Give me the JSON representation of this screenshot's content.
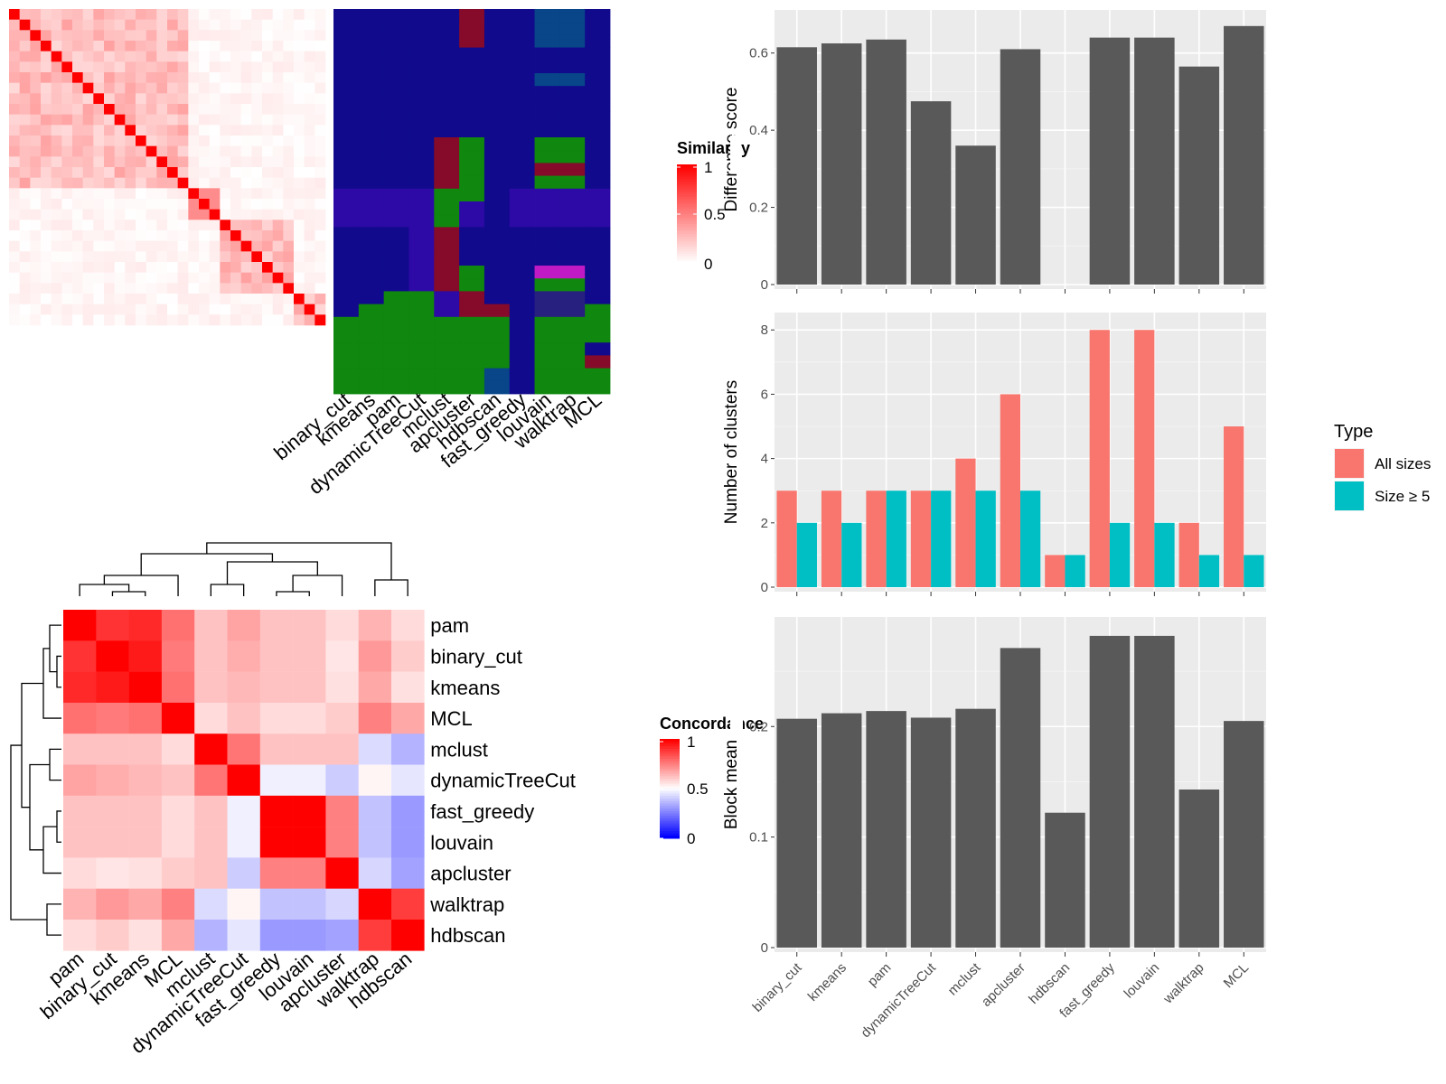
{
  "methods": [
    "binary_cut",
    "kmeans",
    "pam",
    "dynamicTreeCut",
    "mclust",
    "apcluster",
    "hdbscan",
    "fast_greedy",
    "louvain",
    "walktrap",
    "MCL"
  ],
  "similarity_legend": {
    "title": "Similarity",
    "ticks": [
      "1",
      "0.5",
      "0"
    ]
  },
  "concordance_legend": {
    "title": "Concordance",
    "ticks": [
      "1",
      "0.5",
      "0"
    ]
  },
  "type_legend": {
    "title": "Type",
    "items": [
      "All sizes",
      "Size ≥ 5"
    ]
  },
  "colors": {
    "all_sizes": "#F8766D",
    "size_ge5": "#00BFC4",
    "bar": "#595959",
    "panel_bg": "#EBEBEB",
    "red": "#FF0000",
    "blue": "#0000FF"
  },
  "chart_data": [
    {
      "type": "bar",
      "categories": [
        "binary_cut",
        "kmeans",
        "pam",
        "dynamicTreeCut",
        "mclust",
        "apcluster",
        "hdbscan",
        "fast_greedy",
        "louvain",
        "walktrap",
        "MCL"
      ],
      "values": [
        0.615,
        0.625,
        0.635,
        0.475,
        0.36,
        0.61,
        null,
        0.64,
        0.64,
        0.565,
        0.67
      ],
      "ylabel": "Difference score",
      "yticks": [
        0.0,
        0.2,
        0.4,
        0.6
      ],
      "ylim": [
        0,
        0.7
      ]
    },
    {
      "type": "bar",
      "categories": [
        "binary_cut",
        "kmeans",
        "pam",
        "dynamicTreeCut",
        "mclust",
        "apcluster",
        "hdbscan",
        "fast_greedy",
        "louvain",
        "walktrap",
        "MCL"
      ],
      "series": [
        {
          "name": "All sizes",
          "values": [
            3,
            3,
            3,
            3,
            4,
            6,
            1,
            8,
            8,
            2,
            5
          ]
        },
        {
          "name": "Size ≥ 5",
          "values": [
            2,
            2,
            3,
            3,
            3,
            3,
            1,
            2,
            2,
            1,
            1
          ]
        }
      ],
      "ylabel": "Number of clusters",
      "yticks": [
        0,
        2,
        4,
        6,
        8
      ],
      "ylim": [
        0,
        8.4
      ]
    },
    {
      "type": "bar",
      "categories": [
        "binary_cut",
        "kmeans",
        "pam",
        "dynamicTreeCut",
        "mclust",
        "apcluster",
        "hdbscan",
        "fast_greedy",
        "louvain",
        "walktrap",
        "MCL"
      ],
      "values": [
        0.207,
        0.212,
        0.214,
        0.208,
        0.216,
        0.271,
        0.122,
        0.282,
        0.282,
        0.143,
        0.205
      ],
      "ylabel": "Block mean",
      "yticks": [
        0.0,
        0.1,
        0.2
      ],
      "ylim": [
        0,
        0.295
      ]
    },
    {
      "type": "heatmap",
      "row_labels": [
        "pam",
        "binary_cut",
        "kmeans",
        "MCL",
        "mclust",
        "dynamicTreeCut",
        "fast_greedy",
        "louvain",
        "apcluster",
        "walktrap",
        "hdbscan"
      ],
      "col_labels": [
        "pam",
        "binary_cut",
        "kmeans",
        "MCL",
        "mclust",
        "dynamicTreeCut",
        "fast_greedy",
        "louvain",
        "apcluster",
        "walktrap",
        "hdbscan"
      ],
      "values": [
        [
          1.0,
          0.9,
          0.92,
          0.78,
          0.62,
          0.68,
          0.62,
          0.62,
          0.57,
          0.65,
          0.57
        ],
        [
          0.9,
          1.0,
          0.95,
          0.76,
          0.62,
          0.66,
          0.62,
          0.62,
          0.55,
          0.7,
          0.6
        ],
        [
          0.92,
          0.95,
          1.0,
          0.78,
          0.62,
          0.64,
          0.62,
          0.62,
          0.56,
          0.67,
          0.56
        ],
        [
          0.78,
          0.76,
          0.78,
          1.0,
          0.57,
          0.62,
          0.57,
          0.57,
          0.6,
          0.75,
          0.67
        ],
        [
          0.62,
          0.62,
          0.62,
          0.57,
          1.0,
          0.77,
          0.62,
          0.62,
          0.62,
          0.43,
          0.35
        ],
        [
          0.68,
          0.66,
          0.64,
          0.62,
          0.77,
          1.0,
          0.47,
          0.47,
          0.4,
          0.52,
          0.45
        ],
        [
          0.62,
          0.62,
          0.62,
          0.57,
          0.62,
          0.47,
          1.0,
          1.0,
          0.75,
          0.38,
          0.3
        ],
        [
          0.62,
          0.62,
          0.62,
          0.57,
          0.62,
          0.47,
          1.0,
          1.0,
          0.75,
          0.38,
          0.3
        ],
        [
          0.57,
          0.55,
          0.56,
          0.6,
          0.62,
          0.4,
          0.75,
          0.75,
          1.0,
          0.42,
          0.32
        ],
        [
          0.65,
          0.7,
          0.67,
          0.75,
          0.43,
          0.52,
          0.38,
          0.38,
          0.42,
          1.0,
          0.88
        ],
        [
          0.57,
          0.6,
          0.56,
          0.67,
          0.35,
          0.45,
          0.3,
          0.3,
          0.32,
          0.88,
          1.0
        ]
      ],
      "scale": [
        0,
        1
      ]
    }
  ]
}
